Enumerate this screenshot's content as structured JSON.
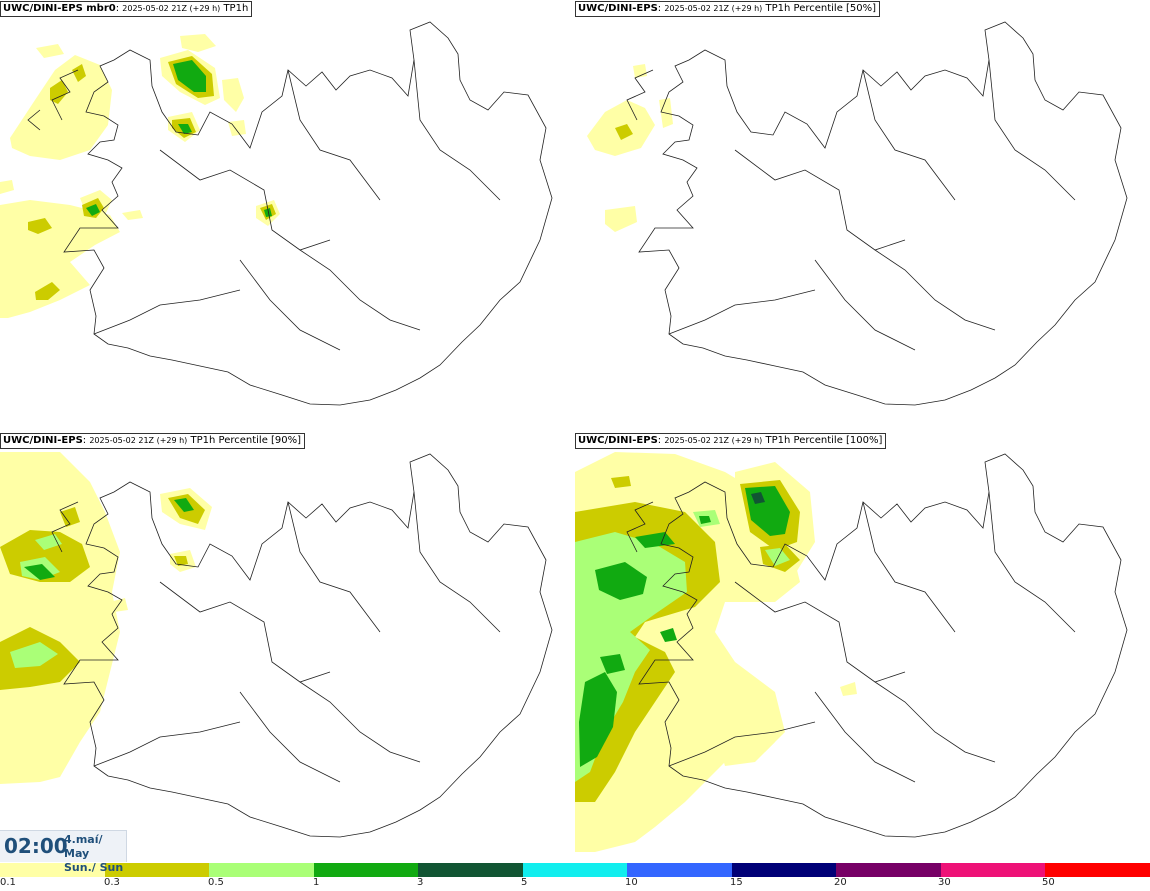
{
  "panels": [
    {
      "model": "UWC/DINI-EPS mbr0",
      "run": "2025-05-02 21Z (+29 h)",
      "field": "TP1h"
    },
    {
      "model": "UWC/DINI-EPS",
      "run": "2025-05-02 21Z (+29 h)",
      "field": "TP1h Percentile [50%]"
    },
    {
      "model": "UWC/DINI-EPS",
      "run": "2025-05-02 21Z (+29 h)",
      "field": "TP1h Percentile [90%]"
    },
    {
      "model": "UWC/DINI-EPS",
      "run": "2025-05-02 21Z (+29 h)",
      "field": "TP1h Percentile [100%]"
    }
  ],
  "valid_time": {
    "time": "02:00",
    "date_line1": "4.maí/ May",
    "date_line2": "Sun./ Sun"
  },
  "legend": {
    "labels": [
      "0.1",
      "0.3",
      "0.5",
      "1",
      "3",
      "5",
      "10",
      "15",
      "20",
      "30",
      "50"
    ],
    "colors": [
      "#ffffa6",
      "#cccc00",
      "#aaff77",
      "#11aa11",
      "#115533",
      "#11eeee",
      "#3366ff",
      "#000077",
      "#770066",
      "#ee1177",
      "#ff0000"
    ]
  }
}
